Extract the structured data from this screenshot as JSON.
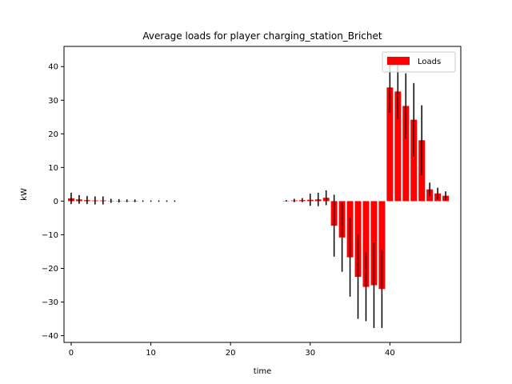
{
  "chart_data": {
    "type": "bar",
    "title": "Average loads for player charging_station_Brichet",
    "xlabel": "time",
    "ylabel": "kW",
    "xlim": [
      -0.9,
      48.9
    ],
    "ylim": [
      -42,
      46
    ],
    "xticks": [
      0,
      10,
      20,
      30,
      40
    ],
    "yticks": [
      -40,
      -30,
      -20,
      -10,
      0,
      10,
      20,
      30,
      40
    ],
    "grid": false,
    "legend": {
      "placement": "top-right",
      "entries": [
        "Loads"
      ]
    },
    "bar_color": "#ff0000",
    "error_color": "#000000",
    "series": [
      {
        "name": "Loads",
        "x": [
          0,
          1,
          2,
          3,
          4,
          5,
          6,
          7,
          8,
          9,
          10,
          11,
          12,
          13,
          27,
          28,
          29,
          30,
          31,
          32,
          33,
          34,
          35,
          36,
          37,
          38,
          39,
          40,
          41,
          42,
          43,
          44,
          45,
          46,
          47
        ],
        "values": [
          0.8,
          0.5,
          0.3,
          0.2,
          0.2,
          0.1,
          0.1,
          0.1,
          0.1,
          0,
          0,
          0,
          0,
          0,
          0.1,
          0.2,
          0.3,
          0.4,
          0.5,
          1.0,
          -7.3,
          -10.8,
          -16.7,
          -22.5,
          -25.5,
          -25.0,
          -26.1,
          33.8,
          32.6,
          28.3,
          24.2,
          18.1,
          3.5,
          2.3,
          1.6
        ],
        "errors": [
          1.7,
          1.3,
          1.2,
          1.2,
          1.2,
          0.6,
          0.5,
          0.4,
          0.4,
          0.2,
          0.2,
          0.2,
          0.2,
          0.2,
          0.2,
          0.5,
          0.6,
          1.8,
          2.0,
          2.2,
          9.2,
          10.2,
          11.7,
          12.5,
          10.2,
          12.7,
          11.6,
          7.5,
          8.2,
          9.7,
          10.9,
          10.4,
          2.0,
          1.7,
          1.3
        ]
      }
    ]
  }
}
